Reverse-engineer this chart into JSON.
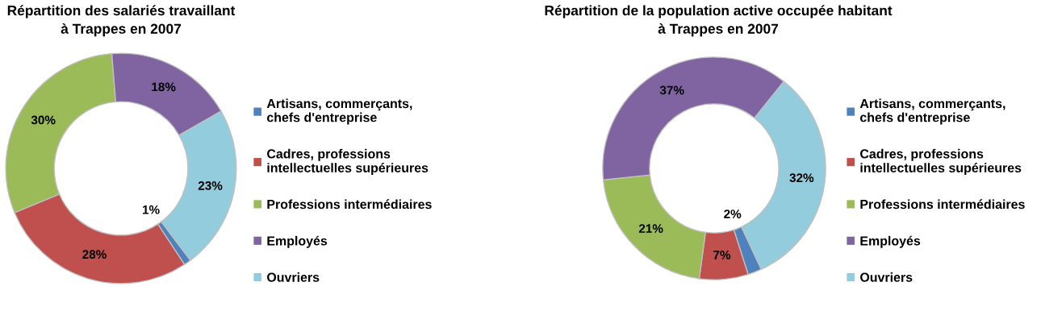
{
  "chart_data": [
    {
      "type": "donut",
      "title": "Répartition des salariés travaillant\nà Trappes en 2007",
      "categories": [
        "Artisans, commerçants,\nchefs d'entreprise",
        "Cadres, professions\nintellectuelles supérieures",
        "Professions intermédiaires",
        "Employés",
        "Ouvriers"
      ],
      "values": [
        1,
        28,
        30,
        18,
        23
      ],
      "colors": [
        "#4f81bd",
        "#c0504d",
        "#9bbb59",
        "#8064a2",
        "#93cddd"
      ],
      "value_labels": [
        "1%",
        "28%",
        "30%",
        "18%",
        "23%"
      ],
      "legend": "right"
    },
    {
      "type": "donut",
      "title": "Répartition de la population active occupée habitant\nà Trappes en 2007",
      "categories": [
        "Artisans, commerçants,\nchefs d'entreprise",
        "Cadres, professions\nintellectuelles supérieures",
        "Professions intermédiaires",
        "Employés",
        "Ouvriers"
      ],
      "values": [
        2,
        7,
        21,
        37,
        32
      ],
      "colors": [
        "#4f81bd",
        "#c0504d",
        "#9bbb59",
        "#8064a2",
        "#93cddd"
      ],
      "value_labels": [
        "2%",
        "7%",
        "21%",
        "37%",
        "32%"
      ],
      "legend": "right"
    }
  ]
}
